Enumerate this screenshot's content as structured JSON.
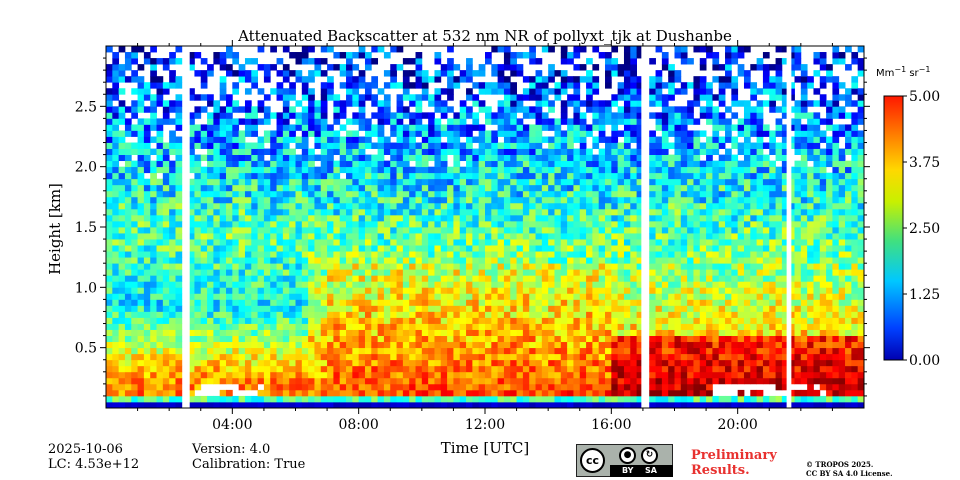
{
  "chart_data": {
    "type": "heatmap",
    "title": "Attenuated Backscatter at 532 nm NR of pollyxt_tjk at Dushanbe",
    "xlabel": "Time [UTC]",
    "ylabel": "Height [km]",
    "xlim_hours": [
      0,
      24
    ],
    "ylim_km": [
      0,
      3.0
    ],
    "x_ticks": [
      "04:00",
      "08:00",
      "12:00",
      "16:00",
      "20:00"
    ],
    "x_tick_hours": [
      4,
      8,
      12,
      16,
      20
    ],
    "y_ticks": [
      "0.5",
      "1.0",
      "1.5",
      "2.0",
      "2.5"
    ],
    "y_tick_values": [
      0.5,
      1.0,
      1.5,
      2.0,
      2.5
    ],
    "colorbar": {
      "label_main": "Mm",
      "label_exp1": "−1",
      "label_mid": " sr",
      "label_exp2": "−1",
      "min": 0.0,
      "max": 5.0,
      "ticks": [
        "0.00",
        "1.25",
        "2.50",
        "3.75",
        "5.00"
      ],
      "tick_values": [
        0.0,
        1.25,
        2.5,
        3.75,
        5.0
      ],
      "colormap": "jet"
    },
    "data_gaps_hours": [
      [
        2.5,
        2.65
      ],
      [
        16.95,
        17.1
      ],
      [
        21.55,
        21.7
      ]
    ],
    "profile_description": {
      "near_surface_band_km": [
        0.0,
        0.08
      ],
      "surface_layer_km": [
        0.08,
        0.3
      ],
      "aerosol_layer_top_km": 2.3
    }
  },
  "footer": {
    "date": "2025-10-06",
    "lc": "LC: 4.53e+12",
    "version": "Version: 4.0",
    "calibration": "Calibration: True",
    "preliminary_line1": "Preliminary",
    "preliminary_line2": "Results.",
    "copyright_line1": "© TROPOS 2025.",
    "copyright_line2": "CC BY SA 4.0 License.",
    "license_badge": {
      "cc": "cc",
      "by": "BY",
      "sa": "SA"
    }
  },
  "colors": {
    "preliminary_text": "#e8312f"
  }
}
